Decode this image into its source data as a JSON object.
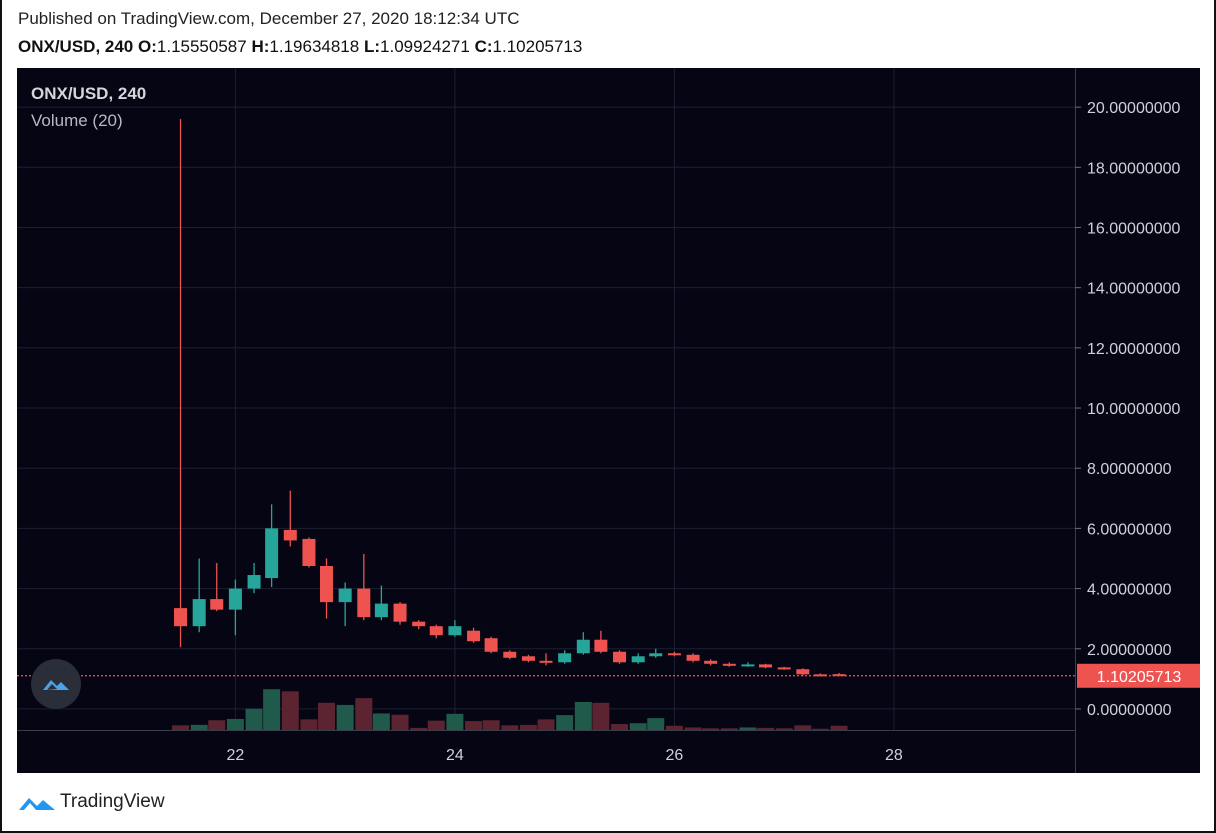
{
  "header": {
    "published": "Published on TradingView.com, December 27, 2020 18:12:34 UTC",
    "symbol": "ONX/USD, 240",
    "o_label": "O:",
    "o_value": "1.15550587",
    "h_label": "H:",
    "h_value": "1.19634818",
    "l_label": "L:",
    "l_value": "1.09924271",
    "c_label": "C:",
    "c_value": "1.10205713"
  },
  "overlay": {
    "title": "ONX/USD, 240",
    "volume_label": "Volume (20)"
  },
  "footer": {
    "brand": "TradingView"
  },
  "colors": {
    "background": "#050514",
    "grid": "#1c2030",
    "up": "#26a69a",
    "down": "#ef5350",
    "up_volume": "#1f5a4a",
    "down_volume": "#5c2431",
    "price_line": "#ef5350",
    "price_badge": "#ef5350"
  },
  "chart_data": {
    "type": "candlestick",
    "symbol": "ONX/USD",
    "interval": "240",
    "y_range": [
      -0.7,
      21.3
    ],
    "x_range": [
      20.01,
      29.65
    ],
    "y_ticks": [
      "0.00000000",
      "2.00000000",
      "4.00000000",
      "6.00000000",
      "8.00000000",
      "10.00000000",
      "12.00000000",
      "14.00000000",
      "16.00000000",
      "18.00000000",
      "20.00000000"
    ],
    "y_tick_values": [
      0,
      2,
      4,
      6,
      8,
      10,
      12,
      14,
      16,
      18,
      20
    ],
    "x_ticks": [
      "22",
      "24",
      "26",
      "28"
    ],
    "x_tick_values": [
      22,
      24,
      26,
      28
    ],
    "last_price": 1.10205713,
    "last_price_label": "1.10205713",
    "candles": [
      {
        "t": 21.5,
        "o": 3.35,
        "h": 19.6,
        "l": 2.05,
        "c": 2.75
      },
      {
        "t": 21.67,
        "o": 2.75,
        "h": 5.0,
        "l": 2.55,
        "c": 3.65
      },
      {
        "t": 21.83,
        "o": 3.65,
        "h": 4.85,
        "l": 3.25,
        "c": 3.3
      },
      {
        "t": 22.0,
        "o": 3.3,
        "h": 4.3,
        "l": 2.45,
        "c": 4.0
      },
      {
        "t": 22.17,
        "o": 4.0,
        "h": 4.85,
        "l": 3.85,
        "c": 4.45
      },
      {
        "t": 22.33,
        "o": 4.35,
        "h": 6.8,
        "l": 4.05,
        "c": 6.0
      },
      {
        "t": 22.5,
        "o": 5.95,
        "h": 7.25,
        "l": 5.4,
        "c": 5.6
      },
      {
        "t": 22.67,
        "o": 5.65,
        "h": 5.7,
        "l": 4.7,
        "c": 4.75
      },
      {
        "t": 22.83,
        "o": 4.75,
        "h": 5.0,
        "l": 3.0,
        "c": 3.55
      },
      {
        "t": 23.0,
        "o": 3.55,
        "h": 4.2,
        "l": 2.75,
        "c": 4.0
      },
      {
        "t": 23.17,
        "o": 4.0,
        "h": 5.15,
        "l": 2.95,
        "c": 3.05
      },
      {
        "t": 23.33,
        "o": 3.05,
        "h": 4.1,
        "l": 2.95,
        "c": 3.5
      },
      {
        "t": 23.5,
        "o": 3.5,
        "h": 3.55,
        "l": 2.8,
        "c": 2.9
      },
      {
        "t": 23.67,
        "o": 2.9,
        "h": 2.95,
        "l": 2.65,
        "c": 2.75
      },
      {
        "t": 23.83,
        "o": 2.75,
        "h": 2.8,
        "l": 2.35,
        "c": 2.45
      },
      {
        "t": 24.0,
        "o": 2.45,
        "h": 2.95,
        "l": 2.4,
        "c": 2.75
      },
      {
        "t": 24.17,
        "o": 2.6,
        "h": 2.7,
        "l": 2.2,
        "c": 2.25
      },
      {
        "t": 24.33,
        "o": 2.35,
        "h": 2.4,
        "l": 1.85,
        "c": 1.9
      },
      {
        "t": 24.5,
        "o": 1.9,
        "h": 1.95,
        "l": 1.65,
        "c": 1.7
      },
      {
        "t": 24.67,
        "o": 1.75,
        "h": 1.8,
        "l": 1.55,
        "c": 1.6
      },
      {
        "t": 24.83,
        "o": 1.6,
        "h": 1.85,
        "l": 1.45,
        "c": 1.55
      },
      {
        "t": 25.0,
        "o": 1.55,
        "h": 1.95,
        "l": 1.5,
        "c": 1.85
      },
      {
        "t": 25.17,
        "o": 1.85,
        "h": 2.55,
        "l": 1.8,
        "c": 2.3
      },
      {
        "t": 25.33,
        "o": 2.3,
        "h": 2.6,
        "l": 1.85,
        "c": 1.9
      },
      {
        "t": 25.5,
        "o": 1.9,
        "h": 1.95,
        "l": 1.5,
        "c": 1.55
      },
      {
        "t": 25.67,
        "o": 1.55,
        "h": 1.85,
        "l": 1.5,
        "c": 1.75
      },
      {
        "t": 25.83,
        "o": 1.75,
        "h": 2.0,
        "l": 1.7,
        "c": 1.85
      },
      {
        "t": 26.0,
        "o": 1.85,
        "h": 1.9,
        "l": 1.75,
        "c": 1.8
      },
      {
        "t": 26.17,
        "o": 1.8,
        "h": 1.85,
        "l": 1.55,
        "c": 1.6
      },
      {
        "t": 26.33,
        "o": 1.6,
        "h": 1.65,
        "l": 1.45,
        "c": 1.5
      },
      {
        "t": 26.5,
        "o": 1.5,
        "h": 1.55,
        "l": 1.4,
        "c": 1.45
      },
      {
        "t": 26.67,
        "o": 1.45,
        "h": 1.55,
        "l": 1.4,
        "c": 1.48
      },
      {
        "t": 26.83,
        "o": 1.48,
        "h": 1.5,
        "l": 1.35,
        "c": 1.38
      },
      {
        "t": 27.0,
        "o": 1.38,
        "h": 1.4,
        "l": 1.3,
        "c": 1.32
      },
      {
        "t": 27.17,
        "o": 1.32,
        "h": 1.35,
        "l": 1.1,
        "c": 1.15
      },
      {
        "t": 27.33,
        "o": 1.15,
        "h": 1.18,
        "l": 1.1,
        "c": 1.12
      },
      {
        "t": 27.5,
        "o": 1.15550587,
        "h": 1.19634818,
        "l": 1.09924271,
        "c": 1.10205713
      }
    ],
    "volume_scale_max": 20,
    "volumes": [
      0.55,
      0.6,
      1.15,
      1.3,
      2.5,
      4.8,
      4.55,
      1.25,
      3.2,
      2.95,
      3.75,
      1.95,
      1.8,
      0.25,
      1.1,
      1.9,
      1.05,
      1.15,
      0.55,
      0.6,
      1.25,
      1.75,
      3.3,
      3.2,
      0.7,
      0.8,
      1.4,
      0.5,
      0.3,
      0.2,
      0.2,
      0.3,
      0.25,
      0.2,
      0.55,
      0.15,
      0.5
    ]
  }
}
